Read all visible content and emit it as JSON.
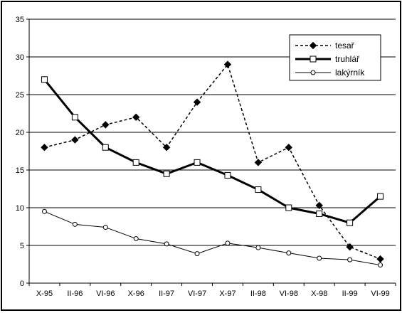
{
  "chart_data": {
    "type": "line",
    "title": "",
    "xlabel": "",
    "ylabel": "",
    "ylim": [
      0,
      35
    ],
    "yticks": [
      0,
      5,
      10,
      15,
      20,
      25,
      30,
      35
    ],
    "grid": "horizontal",
    "legend_position": "top-right",
    "categories": [
      "X-95",
      "II-96",
      "VI-96",
      "X-96",
      "II-97",
      "VI-97",
      "X-97",
      "II-98",
      "VI-98",
      "X-98",
      "II-99",
      "VI-99"
    ],
    "series": [
      {
        "name": "tesař",
        "style": "dashed",
        "marker": "diamond",
        "color": "#000000",
        "values": [
          18,
          19,
          21,
          22,
          18,
          24,
          29,
          16,
          18,
          10.3,
          4.8,
          3.2
        ]
      },
      {
        "name": "truhlář",
        "style": "thick",
        "marker": "square",
        "color": "#000000",
        "values": [
          27,
          22,
          18,
          16,
          14.5,
          16,
          14.3,
          12.4,
          10,
          9.2,
          8,
          11.5
        ]
      },
      {
        "name": "lakýrník",
        "style": "thin",
        "marker": "circle",
        "color": "#000000",
        "values": [
          9.5,
          7.8,
          7.4,
          5.9,
          5.2,
          3.9,
          5.3,
          4.7,
          4,
          3.3,
          3.1,
          2.4
        ]
      }
    ]
  }
}
